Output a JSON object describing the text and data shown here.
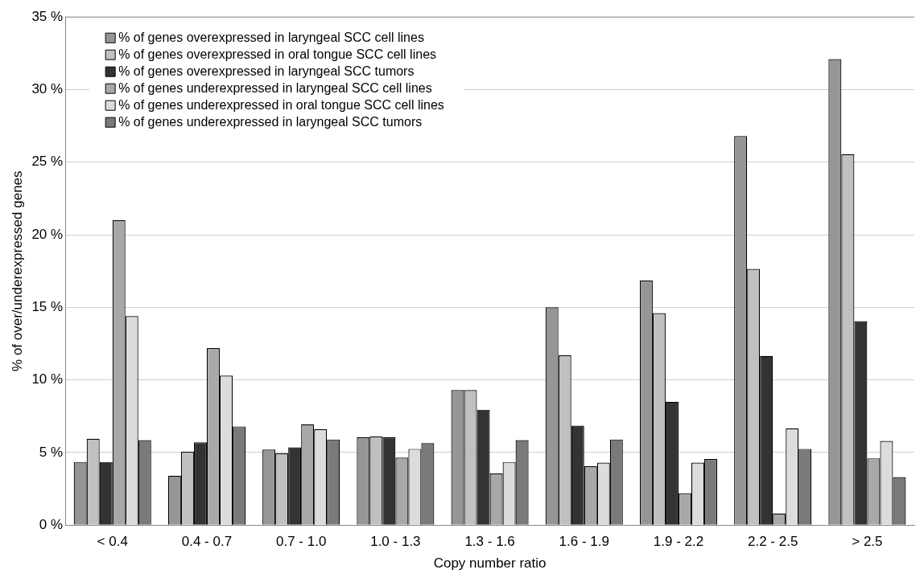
{
  "chart_data": {
    "type": "bar",
    "xlabel": "Copy number ratio",
    "ylabel": "% of over/underexpressed genes",
    "categories": [
      "< 0.4",
      "0.4 - 0.7",
      "0.7 - 1.0",
      "1.0 - 1.3",
      "1.3 - 1.6",
      "1.6 - 1.9",
      "1.9 - 2.2",
      "2.2 - 2.5",
      "> 2.5"
    ],
    "series": [
      {
        "name": "% of genes overexpressed in laryngeal SCC cell lines",
        "color": "#969696",
        "values": [
          4.35,
          3.4,
          5.2,
          6.05,
          9.3,
          15.0,
          16.85,
          26.8,
          32.1
        ]
      },
      {
        "name": "% of genes overexpressed in oral tongue SCC cell lines",
        "color": "#c0c0c0",
        "values": [
          5.95,
          5.05,
          4.95,
          6.1,
          9.3,
          11.7,
          14.6,
          17.65,
          25.55
        ]
      },
      {
        "name": "% of genes overexpressed in laryngeal SCC tumors",
        "color": "#333333",
        "values": [
          4.35,
          5.7,
          5.35,
          6.05,
          7.95,
          6.85,
          8.5,
          11.65,
          14.05
        ]
      },
      {
        "name": "% of genes underexpressed in laryngeal SCC cell lines",
        "color": "#a8a8a8",
        "values": [
          21.0,
          12.2,
          6.95,
          4.65,
          3.55,
          4.05,
          2.2,
          0.8,
          4.6
        ]
      },
      {
        "name": "% of genes underexpressed in oral tongue SCC cell lines",
        "color": "#dcdcdc",
        "values": [
          14.4,
          10.3,
          6.6,
          5.25,
          4.35,
          4.3,
          4.3,
          6.65,
          5.8
        ]
      },
      {
        "name": "% of genes underexpressed in laryngeal SCC tumors",
        "color": "#7a7a7a",
        "values": [
          5.85,
          6.8,
          5.9,
          5.65,
          5.85,
          5.9,
          4.55,
          5.25,
          3.3
        ]
      }
    ],
    "ylim": [
      0,
      35
    ],
    "yticks": [
      {
        "value": 0,
        "label": "0 %"
      },
      {
        "value": 5,
        "label": "5 %"
      },
      {
        "value": 10,
        "label": "10 %"
      },
      {
        "value": 15,
        "label": "15 %"
      },
      {
        "value": 20,
        "label": "20 %"
      },
      {
        "value": 25,
        "label": "25 %"
      },
      {
        "value": 30,
        "label": "30 %"
      },
      {
        "value": 35,
        "label": "35 %"
      }
    ],
    "grid": "y",
    "legend": "top left"
  }
}
